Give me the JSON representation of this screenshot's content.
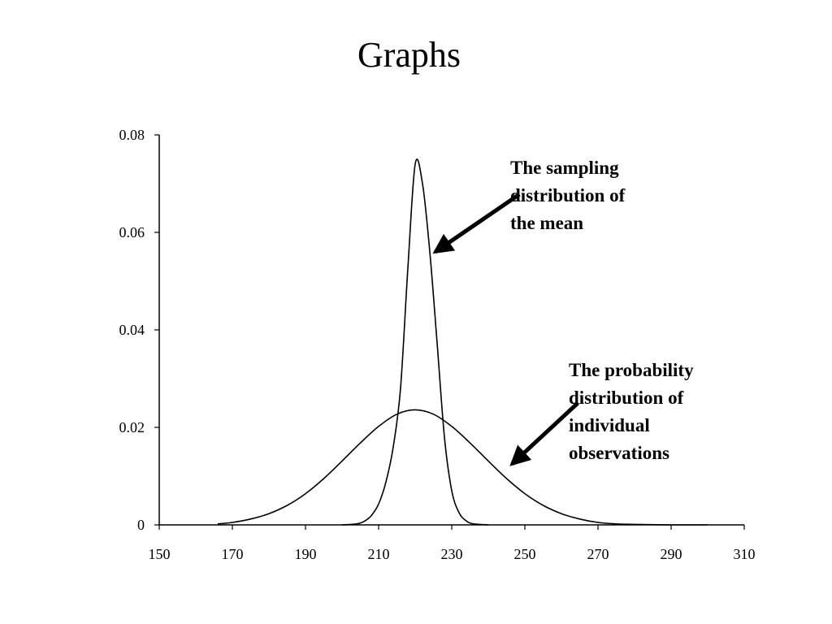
{
  "slide": {
    "title": "Graphs"
  },
  "chart_data": {
    "type": "line",
    "title": "",
    "xlabel": "",
    "ylabel": "",
    "xlim": [
      150,
      310
    ],
    "ylim": [
      0,
      0.08
    ],
    "x_ticks": [
      150,
      170,
      190,
      210,
      230,
      250,
      270,
      290,
      310
    ],
    "y_ticks": [
      0,
      0.02,
      0.04,
      0.06,
      0.08
    ],
    "y_tick_labels": [
      "0",
      "0.02",
      "0.04",
      "0.06",
      "0.08"
    ],
    "grid": false,
    "legend": "none",
    "series": [
      {
        "x": [
          166,
          170,
          175,
          180,
          185,
          190,
          195,
          200,
          205,
          210,
          215,
          220,
          225,
          230,
          235,
          240,
          245,
          250,
          255,
          260,
          265,
          270,
          275,
          280,
          290,
          300
        ],
        "values": [
          0.0002,
          0.0005,
          0.0012,
          0.0023,
          0.004,
          0.0064,
          0.0095,
          0.0131,
          0.0168,
          0.0202,
          0.0227,
          0.0236,
          0.0227,
          0.0202,
          0.0168,
          0.0131,
          0.0095,
          0.0064,
          0.004,
          0.0023,
          0.0012,
          0.0005,
          0.0002,
          0.0001,
          0.0,
          0.0
        ]
      },
      {
        "x": [
          200,
          204,
          206,
          208,
          210,
          212,
          214,
          216,
          218,
          220,
          222,
          224,
          226,
          228,
          230,
          232,
          234,
          236,
          240
        ],
        "values": [
          0.0,
          0.0002,
          0.0007,
          0.0019,
          0.0043,
          0.0088,
          0.016,
          0.0281,
          0.0527,
          0.074,
          0.07,
          0.056,
          0.0373,
          0.018,
          0.007,
          0.0025,
          0.0008,
          0.0002,
          0.0
        ]
      }
    ],
    "annotations": [
      {
        "lines": [
          "The sampling",
          "distribution of",
          "the mean"
        ],
        "arrow_from": [
          248.5,
          0.0678
        ],
        "arrow_to": [
          225.5,
          0.056
        ]
      },
      {
        "lines": [
          "The probability",
          "distribution of",
          "individual",
          "observations"
        ],
        "arrow_from": [
          264.5,
          0.025
        ],
        "arrow_to": [
          246.5,
          0.0125
        ]
      }
    ]
  }
}
